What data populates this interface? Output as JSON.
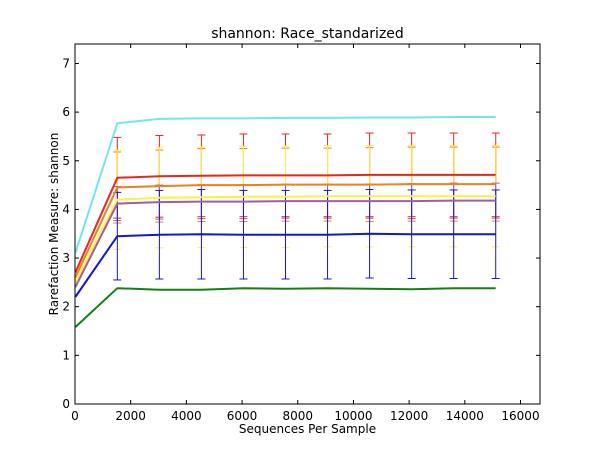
{
  "chart_data": {
    "type": "line",
    "title": "shannon: Race_standarized",
    "xlabel": "Sequences Per Sample",
    "ylabel": "Rarefaction Measure: shannon",
    "xlim": [
      0,
      16700
    ],
    "ylim": [
      0,
      7.4
    ],
    "xticks": [
      0,
      2000,
      4000,
      6000,
      8000,
      10000,
      12000,
      14000,
      16000
    ],
    "yticks": [
      0,
      1,
      2,
      3,
      4,
      5,
      6,
      7
    ],
    "x": [
      10,
      1520,
      3030,
      4540,
      6050,
      7560,
      9070,
      10580,
      12090,
      13600,
      15110
    ],
    "grid": false,
    "legend": "none",
    "series": [
      {
        "color": "#6ee8ee",
        "values": [
          3.1,
          5.77,
          5.86,
          5.87,
          5.87,
          5.88,
          5.88,
          5.89,
          5.89,
          5.9,
          5.9
        ],
        "error": [
          0,
          0,
          0,
          0,
          0,
          0,
          0,
          0,
          0,
          0,
          0
        ]
      },
      {
        "color": "#e8261e",
        "values": [
          2.7,
          4.65,
          4.68,
          4.69,
          4.7,
          4.7,
          4.7,
          4.71,
          4.71,
          4.71,
          4.71
        ],
        "error": [
          0,
          0.83,
          0.84,
          0.84,
          0.85,
          0.85,
          0.85,
          0.86,
          0.86,
          0.86,
          0.86
        ]
      },
      {
        "color": "#f07f1d",
        "values": [
          2.6,
          4.45,
          4.48,
          4.5,
          4.5,
          4.51,
          4.51,
          4.51,
          4.52,
          4.52,
          4.52
        ],
        "error": [
          0,
          0.73,
          0.74,
          0.75,
          0.75,
          0.75,
          0.75,
          0.76,
          0.76,
          0.76,
          0.76
        ]
      },
      {
        "color": "#fef23a",
        "values": [
          2.5,
          4.2,
          4.24,
          4.25,
          4.26,
          4.26,
          4.27,
          4.27,
          4.27,
          4.27,
          4.27
        ],
        "error": [
          0,
          1.02,
          1.03,
          1.03,
          1.04,
          1.04,
          1.04,
          1.04,
          1.04,
          1.04,
          1.04
        ]
      },
      {
        "color": "#a05bb3",
        "values": [
          2.4,
          4.12,
          4.15,
          4.16,
          4.16,
          4.17,
          4.17,
          4.17,
          4.17,
          4.18,
          4.18
        ],
        "error": [
          0,
          0.35,
          0.35,
          0.35,
          0.35,
          0.35,
          0.35,
          0.35,
          0.36,
          0.36,
          0.36
        ]
      },
      {
        "color": "#1515d6",
        "values": [
          2.2,
          3.45,
          3.48,
          3.49,
          3.48,
          3.48,
          3.48,
          3.5,
          3.49,
          3.49,
          3.49
        ],
        "error": [
          0,
          0.9,
          0.91,
          0.92,
          0.91,
          0.91,
          0.91,
          0.91,
          0.91,
          0.91,
          0.91
        ]
      },
      {
        "color": "#138013",
        "values": [
          1.58,
          2.38,
          2.35,
          2.35,
          2.38,
          2.37,
          2.38,
          2.37,
          2.36,
          2.38,
          2.38
        ],
        "error": [
          0,
          0,
          0,
          0,
          0,
          0,
          0,
          0,
          0,
          0,
          0
        ]
      }
    ]
  }
}
